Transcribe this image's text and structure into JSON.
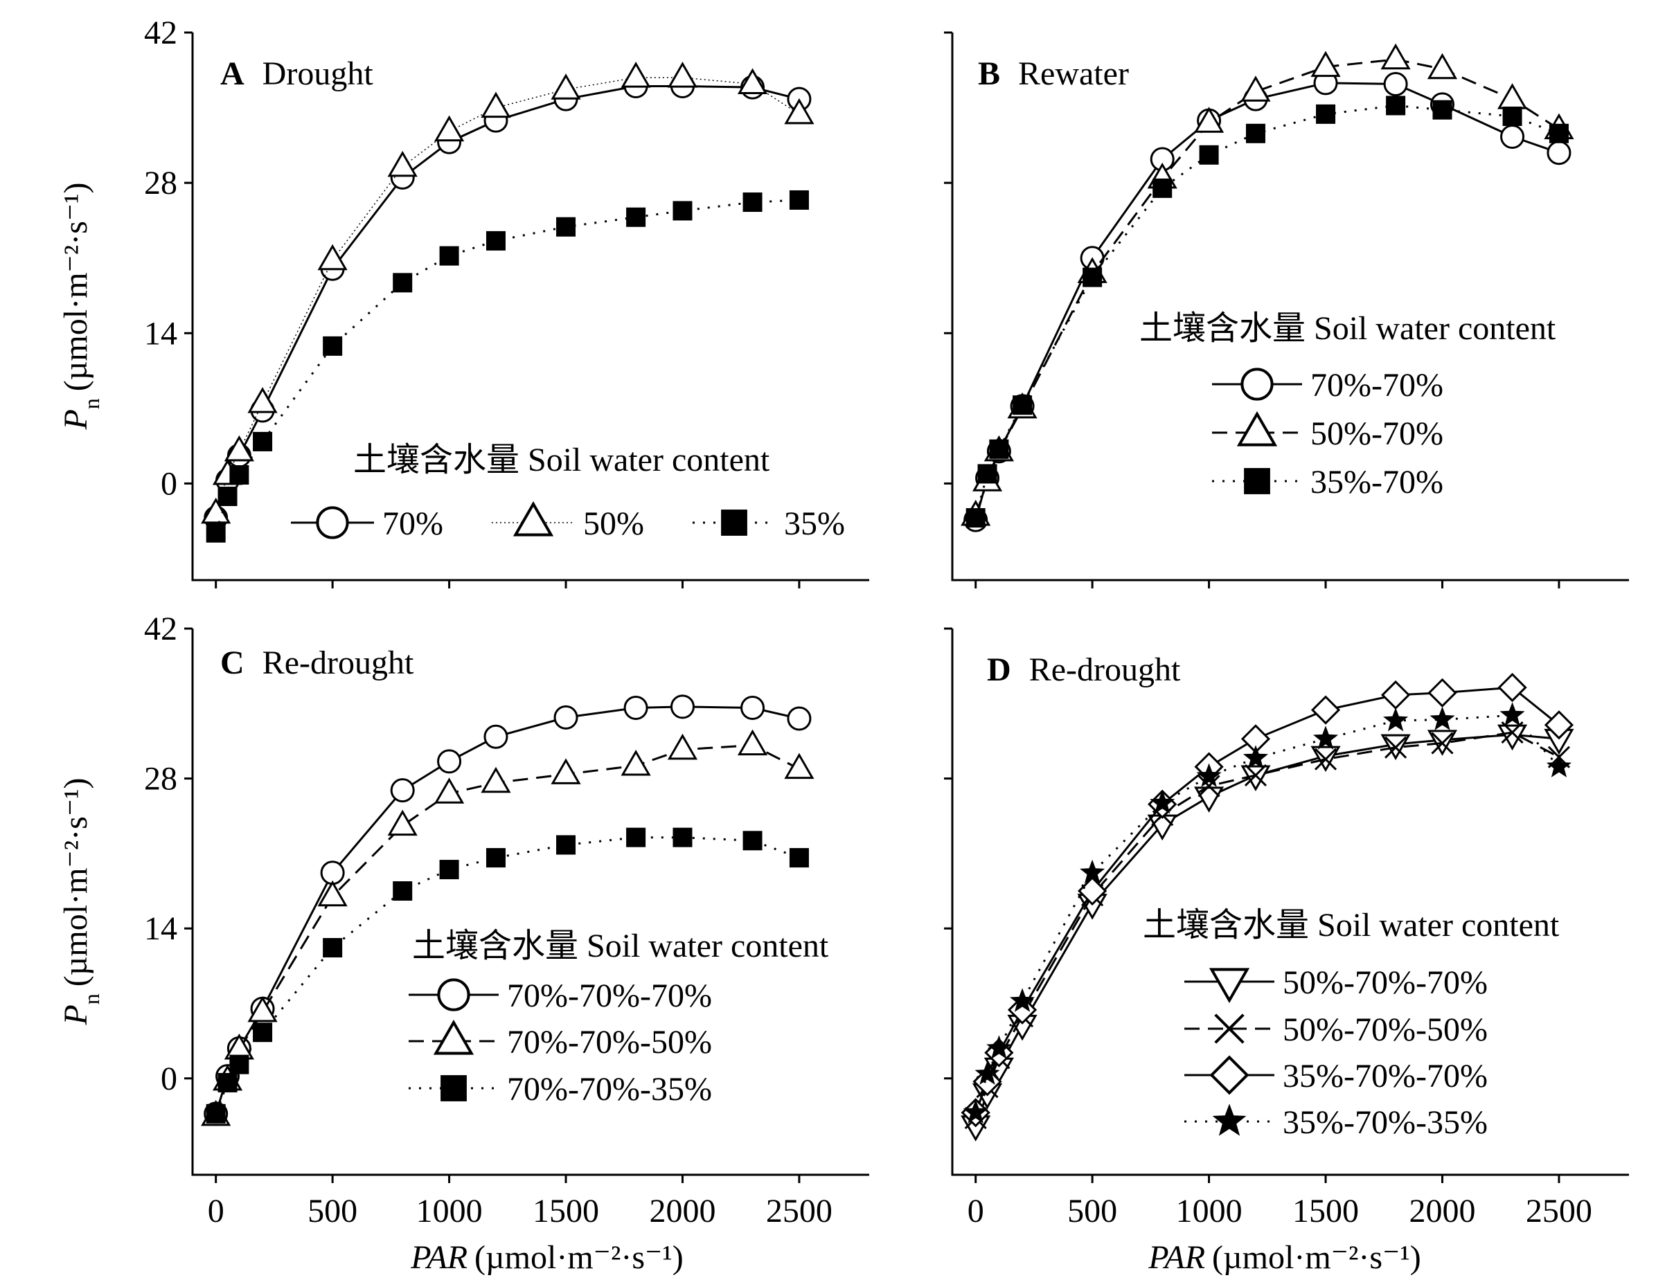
{
  "figure": {
    "x_axis_title_italic": "PAR",
    "x_axis_title_unit": "(µmol·m⁻²·s⁻¹)",
    "y_axis_title_italic": "P",
    "y_axis_title_sub": "n",
    "y_axis_title_unit": "(µmol·m⁻²·s⁻¹)"
  },
  "chart_data": [
    {
      "panel": "A",
      "title": "Drought",
      "type": "line",
      "xlim": [
        -100,
        2800
      ],
      "ylim": [
        -9,
        42
      ],
      "x_ticks": [
        0,
        500,
        1000,
        1500,
        2000,
        2500
      ],
      "y_ticks": [
        0,
        14,
        28,
        42
      ],
      "x": [
        0,
        50,
        100,
        200,
        500,
        800,
        1000,
        1200,
        1500,
        1800,
        2000,
        2300,
        2500
      ],
      "legend_title": "土壤含水量 Soil water content",
      "legend_layout": "horizontal",
      "series": [
        {
          "name": "70%",
          "marker": "circle-open",
          "line": "solid",
          "values": [
            -3.2,
            0.3,
            2.6,
            6.8,
            20.0,
            28.5,
            31.8,
            33.8,
            35.8,
            37.0,
            37.0,
            36.9,
            35.8
          ]
        },
        {
          "name": "50%",
          "marker": "triangle-open",
          "line": "dotted-thin",
          "values": [
            -2.8,
            0.8,
            3.0,
            7.5,
            20.8,
            29.5,
            32.8,
            35.0,
            36.7,
            37.8,
            37.8,
            37.2,
            34.4
          ]
        },
        {
          "name": "35%",
          "marker": "square-filled",
          "line": "dotted",
          "values": [
            -4.6,
            -1.2,
            0.8,
            3.9,
            12.8,
            18.7,
            21.2,
            22.6,
            23.9,
            24.8,
            25.4,
            26.2,
            26.4
          ]
        }
      ]
    },
    {
      "panel": "B",
      "title": "Rewater",
      "type": "line",
      "xlim": [
        -100,
        2800
      ],
      "ylim": [
        -9,
        42
      ],
      "x_ticks": [
        0,
        500,
        1000,
        1500,
        2000,
        2500
      ],
      "y_ticks": [
        0,
        14,
        28,
        42
      ],
      "x": [
        0,
        50,
        100,
        200,
        500,
        800,
        1000,
        1200,
        1500,
        1800,
        2000,
        2300,
        2500
      ],
      "legend_title": "土壤含水量 Soil water content",
      "legend_layout": "vertical",
      "series": [
        {
          "name": "70%-70%",
          "marker": "circle-open",
          "line": "solid",
          "values": [
            -3.4,
            0.5,
            3.0,
            7.2,
            21.0,
            30.2,
            33.8,
            35.8,
            37.3,
            37.2,
            35.3,
            32.3,
            30.8
          ]
        },
        {
          "name": "50%-70%",
          "marker": "triangle-open",
          "line": "dashed",
          "values": [
            -3.0,
            0.2,
            3.0,
            7.0,
            19.6,
            28.4,
            33.6,
            36.5,
            38.8,
            39.5,
            38.6,
            35.8,
            33.0
          ]
        },
        {
          "name": "35%-70%",
          "marker": "square-filled",
          "line": "dotted",
          "values": [
            -3.2,
            0.9,
            3.2,
            7.3,
            19.2,
            27.5,
            30.6,
            32.6,
            34.4,
            35.2,
            34.8,
            34.2,
            32.6
          ]
        }
      ]
    },
    {
      "panel": "C",
      "title": "Re-drought",
      "type": "line",
      "xlim": [
        -100,
        2800
      ],
      "ylim": [
        -9,
        42
      ],
      "x_ticks": [
        0,
        500,
        1000,
        1500,
        2000,
        2500
      ],
      "y_ticks": [
        0,
        14,
        28,
        42
      ],
      "x": [
        0,
        50,
        100,
        200,
        500,
        800,
        1000,
        1200,
        1500,
        1800,
        2000,
        2300,
        2500
      ],
      "legend_title": "土壤含水量 Soil water content",
      "legend_layout": "vertical",
      "series": [
        {
          "name": "70%-70%-70%",
          "marker": "circle-open",
          "line": "solid",
          "values": [
            -3.3,
            0.2,
            2.8,
            6.5,
            19.2,
            26.9,
            29.6,
            31.9,
            33.7,
            34.6,
            34.7,
            34.6,
            33.6
          ]
        },
        {
          "name": "70%-70%-50%",
          "marker": "triangle-open",
          "line": "dashed",
          "values": [
            -3.5,
            -0.2,
            2.7,
            6.2,
            17.0,
            23.6,
            26.6,
            27.6,
            28.4,
            29.2,
            30.7,
            31.1,
            28.9
          ]
        },
        {
          "name": "70%-70%-35%",
          "marker": "square-filled",
          "line": "dotted",
          "values": [
            -3.3,
            -0.4,
            1.3,
            4.3,
            12.2,
            17.5,
            19.5,
            20.6,
            21.8,
            22.5,
            22.5,
            22.2,
            20.6
          ]
        }
      ]
    },
    {
      "panel": "D",
      "title": "Re-drought",
      "type": "line",
      "xlim": [
        -100,
        2800
      ],
      "ylim": [
        -9,
        42
      ],
      "x_ticks": [
        0,
        500,
        1000,
        1500,
        2000,
        2500
      ],
      "y_ticks": [
        0,
        14,
        28,
        42
      ],
      "x": [
        0,
        50,
        100,
        200,
        500,
        800,
        1000,
        1200,
        1500,
        1800,
        2000,
        2300,
        2500
      ],
      "legend_title": "土壤含水量 Soil water content",
      "legend_layout": "vertical",
      "series": [
        {
          "name": "50%-70%-70%",
          "marker": "triangle-down-open",
          "line": "solid",
          "values": [
            -4.4,
            -1.4,
            1.0,
            5.0,
            16.3,
            23.7,
            26.3,
            28.3,
            30.1,
            31.2,
            31.6,
            32.1,
            31.7
          ]
        },
        {
          "name": "50%-70%-50%",
          "marker": "x-cross",
          "line": "dashed",
          "values": [
            -3.7,
            -0.8,
            1.9,
            5.8,
            17.1,
            24.6,
            27.3,
            28.3,
            29.8,
            30.9,
            31.3,
            32.3,
            30.0
          ]
        },
        {
          "name": "35%-70%-70%",
          "marker": "diamond-open",
          "line": "solid",
          "values": [
            -3.2,
            -0.3,
            2.4,
            6.4,
            17.5,
            25.6,
            29.1,
            31.7,
            34.4,
            35.8,
            36.0,
            36.5,
            33.0
          ]
        },
        {
          "name": "35%-70%-35%",
          "marker": "star-filled",
          "line": "dotted",
          "values": [
            -3.2,
            0.4,
            2.8,
            7.2,
            19.2,
            25.7,
            28.2,
            29.9,
            31.7,
            33.4,
            33.5,
            33.9,
            29.1
          ]
        }
      ]
    }
  ]
}
